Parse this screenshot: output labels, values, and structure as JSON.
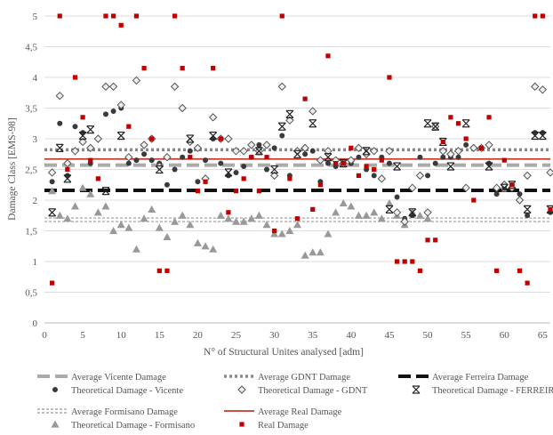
{
  "chart_data": {
    "type": "scatter",
    "title": "",
    "xlabel": "N° of Structural Unites analysed [adm]",
    "ylabel": "Damage Class  [EMS-98]",
    "xlim": [
      0,
      66
    ],
    "ylim": [
      0,
      5
    ],
    "x_ticks": [
      "0",
      "5",
      "10",
      "15",
      "20",
      "25",
      "30",
      "35",
      "40",
      "45",
      "50",
      "55",
      "60",
      "65"
    ],
    "y_ticks": [
      "0",
      "0,5",
      "1",
      "1,5",
      "2",
      "2,5",
      "3",
      "3,5",
      "4",
      "4,5",
      "5"
    ],
    "grid": "horizontal",
    "legend_position": "bottom",
    "averages": [
      {
        "name": "Average Vicente Damage",
        "value": 2.57,
        "color": "#aaaaaa",
        "style": "dashed-thick"
      },
      {
        "name": "Average GDNT Damage",
        "value": 2.82,
        "color": "#888888",
        "style": "dotted"
      },
      {
        "name": "Average Ferreira Damage",
        "value": 2.16,
        "color": "#111111",
        "style": "dashed-thick"
      },
      {
        "name": "Average Formisano Damage",
        "value": 1.68,
        "color": "#999999",
        "style": "double-dotted"
      },
      {
        "name": "Average Real Damage",
        "value": 2.67,
        "color": "#c0392b",
        "style": "solid"
      }
    ],
    "series": [
      {
        "name": "Theoretical Damage - Vicente",
        "marker": "circle",
        "color": "#3a3a3a",
        "x": [
          1,
          2,
          3,
          4,
          5,
          6,
          7,
          8,
          9,
          10,
          11,
          12,
          13,
          14,
          15,
          16,
          17,
          18,
          19,
          20,
          21,
          22,
          23,
          24,
          25,
          26,
          27,
          28,
          29,
          30,
          31,
          32,
          33,
          34,
          35,
          36,
          37,
          38,
          39,
          40,
          41,
          42,
          43,
          44,
          45,
          46,
          47,
          48,
          49,
          50,
          51,
          52,
          53,
          54,
          55,
          56,
          57,
          58,
          59,
          60,
          61,
          62,
          63,
          64,
          65,
          66
        ],
        "y": [
          2.3,
          3.25,
          2.4,
          3.2,
          3.1,
          2.6,
          3.0,
          3.4,
          3.45,
          3.5,
          2.6,
          2.65,
          2.75,
          2.65,
          2.6,
          2.25,
          2.5,
          2.7,
          2.8,
          2.3,
          2.65,
          3.0,
          2.6,
          2.4,
          2.45,
          2.55,
          2.7,
          2.9,
          2.5,
          2.85,
          3.05,
          2.4,
          2.8,
          2.75,
          2.8,
          2.3,
          2.6,
          2.55,
          2.6,
          2.6,
          2.7,
          2.5,
          2.4,
          2.7,
          2.6,
          2.05,
          1.7,
          1.75,
          2.7,
          2.4,
          2.6,
          2.7,
          2.7,
          2.7,
          2.9,
          2.85,
          2.85,
          2.6,
          2.1,
          2.2,
          2.25,
          2.1,
          1.75,
          3.1,
          3.1,
          1.8
        ]
      },
      {
        "name": "Theoretical Damage - GDNT",
        "marker": "diamond",
        "color": "#555555",
        "x": [
          1,
          2,
          3,
          4,
          5,
          6,
          7,
          8,
          9,
          10,
          11,
          12,
          13,
          14,
          15,
          16,
          17,
          18,
          19,
          20,
          21,
          22,
          23,
          24,
          25,
          26,
          27,
          28,
          29,
          30,
          31,
          32,
          33,
          34,
          35,
          36,
          37,
          38,
          39,
          40,
          41,
          42,
          43,
          44,
          45,
          46,
          47,
          48,
          49,
          50,
          51,
          52,
          53,
          54,
          55,
          56,
          57,
          58,
          59,
          60,
          61,
          62,
          63,
          64,
          65,
          66
        ],
        "y": [
          2.45,
          3.7,
          2.6,
          2.8,
          2.95,
          2.85,
          3.0,
          3.85,
          3.85,
          3.55,
          2.7,
          3.95,
          2.9,
          3.0,
          2.55,
          2.7,
          3.85,
          3.5,
          2.95,
          2.85,
          2.35,
          3.35,
          3.0,
          3.0,
          2.8,
          2.8,
          2.9,
          2.8,
          2.9,
          2.4,
          3.85,
          3.3,
          2.8,
          2.85,
          3.45,
          2.65,
          2.8,
          2.65,
          2.6,
          2.65,
          2.85,
          2.75,
          2.8,
          2.35,
          2.8,
          1.8,
          1.65,
          2.2,
          2.4,
          1.8,
          3.2,
          2.8,
          2.75,
          2.8,
          2.2,
          2.85,
          2.85,
          2.9,
          2.2,
          2.25,
          2.2,
          2.0,
          2.4,
          3.85,
          3.8,
          2.45
        ]
      },
      {
        "name": "Theoretical Damage - FERREIRA",
        "marker": "star",
        "color": "#222222",
        "x": [
          1,
          2,
          3,
          5,
          6,
          8,
          10,
          15,
          19,
          22,
          24,
          28,
          30,
          31,
          32,
          33,
          35,
          37,
          39,
          42,
          45,
          46,
          48,
          50,
          51,
          52,
          53,
          55,
          58,
          60,
          61,
          63,
          64,
          65,
          66
        ],
        "y": [
          1.8,
          2.85,
          2.35,
          3.05,
          3.15,
          2.15,
          3.05,
          2.5,
          3.0,
          3.05,
          2.45,
          2.8,
          2.5,
          3.2,
          3.4,
          2.75,
          3.25,
          2.7,
          2.6,
          2.8,
          1.85,
          2.55,
          1.8,
          3.25,
          3.2,
          2.95,
          2.55,
          3.25,
          2.55,
          2.2,
          2.25,
          1.85,
          3.05,
          3.05,
          1.85
        ]
      },
      {
        "name": "Theoretical Damage - Formisano",
        "marker": "triangle",
        "color": "#999999",
        "x": [
          1,
          2,
          3,
          4,
          5,
          6,
          7,
          8,
          9,
          10,
          11,
          12,
          13,
          14,
          15,
          16,
          17,
          18,
          19,
          20,
          21,
          22,
          23,
          24,
          25,
          26,
          27,
          28,
          29,
          30,
          31,
          32,
          33,
          34,
          35,
          36,
          37,
          38,
          39,
          40,
          41,
          42,
          43,
          44,
          45,
          46,
          47,
          48,
          49,
          50
        ],
        "y": [
          2.15,
          1.75,
          1.7,
          1.9,
          2.2,
          2.1,
          1.8,
          1.9,
          1.5,
          1.6,
          1.55,
          1.2,
          1.7,
          1.85,
          1.55,
          1.4,
          1.65,
          1.75,
          1.6,
          1.3,
          1.25,
          1.2,
          1.75,
          1.7,
          1.65,
          1.65,
          1.7,
          1.75,
          1.6,
          1.45,
          1.45,
          1.5,
          1.6,
          1.1,
          1.15,
          1.15,
          1.45,
          1.8,
          1.95,
          1.9,
          1.75,
          1.75,
          1.8,
          1.7,
          1.95,
          1.75,
          1.6,
          1.8,
          1.75,
          1.7
        ]
      },
      {
        "name": "Real Damage",
        "marker": "square",
        "color": "#c00000",
        "x": [
          1,
          2,
          3,
          4,
          5,
          6,
          7,
          8,
          9,
          10,
          11,
          12,
          13,
          14,
          15,
          16,
          17,
          18,
          19,
          20,
          21,
          22,
          23,
          24,
          25,
          26,
          27,
          28,
          29,
          30,
          31,
          32,
          33,
          34,
          35,
          36,
          37,
          38,
          39,
          40,
          41,
          42,
          43,
          44,
          45,
          46,
          47,
          48,
          49,
          50,
          51,
          52,
          53,
          54,
          55,
          56,
          57,
          58,
          59,
          60,
          61,
          62,
          63,
          64,
          65,
          66
        ],
        "y": [
          0.65,
          5.0,
          2.5,
          4.0,
          3.35,
          2.65,
          2.35,
          5.0,
          5.0,
          4.85,
          3.2,
          5.0,
          4.15,
          3.0,
          0.85,
          0.85,
          5.0,
          4.15,
          2.7,
          2.15,
          2.3,
          4.15,
          3.0,
          1.8,
          2.15,
          2.35,
          2.7,
          2.15,
          2.7,
          1.5,
          5.0,
          2.35,
          1.7,
          3.65,
          1.85,
          2.25,
          4.35,
          2.6,
          2.6,
          2.85,
          2.4,
          2.55,
          2.5,
          2.65,
          4.0,
          1.0,
          1.0,
          1.0,
          0.85,
          1.35,
          1.35,
          2.95,
          3.35,
          3.25,
          3.0,
          2.0,
          2.85,
          3.35,
          0.85,
          2.65,
          2.25,
          0.85,
          0.65,
          5.0,
          5.0,
          1.85
        ]
      }
    ]
  },
  "legend": {
    "items": [
      {
        "label": "Average Vicente Damage"
      },
      {
        "label": "Average GDNT Damage"
      },
      {
        "label": "Average Ferreira Damage"
      },
      {
        "label": "Theoretical Damage - Vicente"
      },
      {
        "label": "Theoretical Damage - GDNT"
      },
      {
        "label": "Theoretical Damage - FERREIRA"
      },
      {
        "label": "Average Formisano Damage"
      },
      {
        "label": "Average Real Damage"
      },
      {
        "label": "Theoretical Damage - Formisano"
      },
      {
        "label": "Real Damage"
      }
    ]
  }
}
